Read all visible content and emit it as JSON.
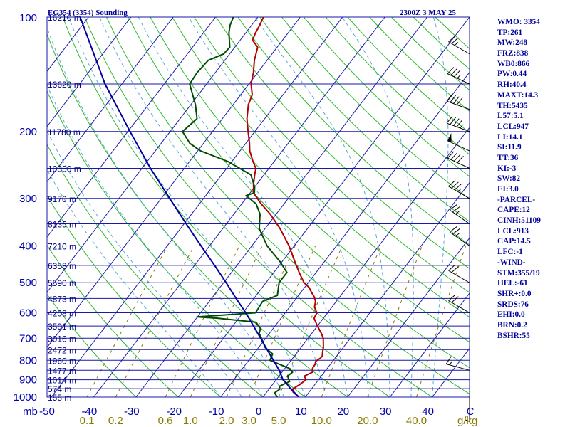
{
  "header": {
    "station": "EG354 (3354) Sounding",
    "time": "2300Z  3 MAY 25"
  },
  "stats": [
    "WMO: 3354",
    "TP:261",
    "MW:248",
    "FRZ:838",
    "WB0:866",
    "PW:0.44",
    "RH:40.4",
    "MAXT:14.3",
    "TH:5435",
    "L57:5.1",
    "LCL:947",
    "LI:14.1",
    "SI:11.9",
    "TT:36",
    "KI:-3",
    "SW:82",
    "EI:3.0",
    "-PARCEL-",
    "CAPE:12",
    "CINH:51109",
    "LCL:913",
    "CAP:14.5",
    "LFC:-1",
    "-WIND-",
    "STM:355/19",
    "HEL:-61",
    "SHR+:0.0",
    "SRDS:76",
    "EHI:0.0",
    "BRN:0.2",
    "BSHR:55"
  ],
  "chart_data": {
    "type": "line",
    "subtype": "skew-T log-P sounding",
    "xlim": [
      -50,
      40
    ],
    "ylim": [
      1000,
      100
    ],
    "ylog": true,
    "xunit": "C",
    "mixing_ratio_unit": "g/kg",
    "pressure_unit": "mb",
    "pressure_ticks": [
      {
        "p": 100,
        "label": "100"
      },
      {
        "p": 200,
        "label": "200"
      },
      {
        "p": 300,
        "label": "300"
      },
      {
        "p": 400,
        "label": "400"
      },
      {
        "p": 500,
        "label": "500"
      },
      {
        "p": 600,
        "label": "600"
      },
      {
        "p": 700,
        "label": "700"
      },
      {
        "p": 800,
        "label": "800"
      },
      {
        "p": 900,
        "label": "900"
      },
      {
        "p": 1000,
        "label": "1000"
      }
    ],
    "height_labels": [
      {
        "p": 100,
        "label": "16210 m"
      },
      {
        "p": 150,
        "label": "13620 m"
      },
      {
        "p": 200,
        "label": "11780 m"
      },
      {
        "p": 250,
        "label": "10350 m"
      },
      {
        "p": 300,
        "label": "9170 m"
      },
      {
        "p": 350,
        "label": "8135 m"
      },
      {
        "p": 400,
        "label": "7210 m"
      },
      {
        "p": 450,
        "label": "6358 m"
      },
      {
        "p": 500,
        "label": "5590 m"
      },
      {
        "p": 550,
        "label": "4873 m"
      },
      {
        "p": 600,
        "label": "4208 m"
      },
      {
        "p": 650,
        "label": "3591 m"
      },
      {
        "p": 700,
        "label": "3016 m"
      },
      {
        "p": 750,
        "label": "2472 m"
      },
      {
        "p": 800,
        "label": "1960 m"
      },
      {
        "p": 850,
        "label": "1477 m"
      },
      {
        "p": 900,
        "label": "1014 m"
      },
      {
        "p": 950,
        "label": "574 m"
      },
      {
        "p": 1000,
        "label": "155 m"
      }
    ],
    "temp_ticks": [
      "-50",
      "-40",
      "-30",
      "-20",
      "-10",
      "0",
      "10",
      "20",
      "30",
      "40",
      "C"
    ],
    "mixing_ticks": [
      {
        "w": 0.1,
        "label": "0.1"
      },
      {
        "w": 0.2,
        "label": "0.2"
      },
      {
        "w": 0.6,
        "label": "0.6"
      },
      {
        "w": 1.0,
        "label": "1.0"
      },
      {
        "w": 2.0,
        "label": "2.0"
      },
      {
        "w": 3.0,
        "label": "3.0"
      },
      {
        "w": 5.0,
        "label": "5.0"
      },
      {
        "w": 10.0,
        "label": "10.0"
      },
      {
        "w": 20.0,
        "label": "20.0"
      },
      {
        "w": 40.0,
        "label": "40.0"
      }
    ],
    "mixing_unit_label": "g/kg",
    "colors": {
      "isobar": "#1a1aa8",
      "isotherm": "#1a1aa8",
      "dry_adiabat": "#2db82d",
      "moist_adiabat": "#5aa9d8",
      "mixing_ratio": "#8c7a00",
      "temperature": "#b30000",
      "dewpoint": "#004d00",
      "parcel": "#0000a0",
      "wind": "#000000"
    },
    "series": [
      {
        "key": "temperature",
        "values": [
          {
            "p": 1000,
            "t": 8.5
          },
          {
            "p": 970,
            "t": 6.2
          },
          {
            "p": 950,
            "t": 5.6
          },
          {
            "p": 925,
            "t": 6.5
          },
          {
            "p": 900,
            "t": 7.0
          },
          {
            "p": 880,
            "t": 6.0
          },
          {
            "p": 860,
            "t": 7.2
          },
          {
            "p": 840,
            "t": 6.5
          },
          {
            "p": 820,
            "t": 6.4
          },
          {
            "p": 805,
            "t": 6.0
          },
          {
            "p": 790,
            "t": 6.5
          },
          {
            "p": 780,
            "t": 6.6
          },
          {
            "p": 760,
            "t": 5.9
          },
          {
            "p": 740,
            "t": 5.3
          },
          {
            "p": 700,
            "t": 3.6
          },
          {
            "p": 680,
            "t": 2.3
          },
          {
            "p": 650,
            "t": 0.0
          },
          {
            "p": 620,
            "t": -2.2
          },
          {
            "p": 600,
            "t": -2.5
          },
          {
            "p": 580,
            "t": -4.1
          },
          {
            "p": 560,
            "t": -4.9
          },
          {
            "p": 545,
            "t": -6.0
          },
          {
            "p": 530,
            "t": -7.5
          },
          {
            "p": 515,
            "t": -8.9
          },
          {
            "p": 500,
            "t": -11.0
          },
          {
            "p": 470,
            "t": -14.0
          },
          {
            "p": 440,
            "t": -17.0
          },
          {
            "p": 400,
            "t": -21.2
          },
          {
            "p": 360,
            "t": -26.5
          },
          {
            "p": 330,
            "t": -31.4
          },
          {
            "p": 310,
            "t": -35.4
          },
          {
            "p": 300,
            "t": -37.3
          },
          {
            "p": 290,
            "t": -39.2
          },
          {
            "p": 275,
            "t": -40.8
          },
          {
            "p": 260,
            "t": -42.2
          },
          {
            "p": 250,
            "t": -43.1
          },
          {
            "p": 240,
            "t": -45.0
          },
          {
            "p": 225,
            "t": -47.7
          },
          {
            "p": 215,
            "t": -49.1
          },
          {
            "p": 200,
            "t": -51.6
          },
          {
            "p": 185,
            "t": -54.2
          },
          {
            "p": 170,
            "t": -56.4
          },
          {
            "p": 160,
            "t": -57.3
          },
          {
            "p": 150,
            "t": -59.5
          },
          {
            "p": 140,
            "t": -61.0
          },
          {
            "p": 130,
            "t": -63.0
          },
          {
            "p": 120,
            "t": -64.6
          },
          {
            "p": 115,
            "t": -67.1
          },
          {
            "p": 110,
            "t": -67.7
          },
          {
            "p": 105,
            "t": -68.1
          },
          {
            "p": 100,
            "t": -68.7
          }
        ]
      },
      {
        "key": "dewpoint",
        "values": [
          {
            "p": 1000,
            "t": 3.4
          },
          {
            "p": 975,
            "t": 2.0
          },
          {
            "p": 955,
            "t": 2.5
          },
          {
            "p": 935,
            "t": 2.0
          },
          {
            "p": 910,
            "t": 3.5
          },
          {
            "p": 880,
            "t": 2.0
          },
          {
            "p": 860,
            "t": 2.5
          },
          {
            "p": 840,
            "t": 1.0
          },
          {
            "p": 800,
            "t": -5.0
          },
          {
            "p": 770,
            "t": -5.5
          },
          {
            "p": 740,
            "t": -8.5
          },
          {
            "p": 700,
            "t": -11.0
          },
          {
            "p": 680,
            "t": -12.4
          },
          {
            "p": 660,
            "t": -13.0
          },
          {
            "p": 635,
            "t": -15.2
          },
          {
            "p": 620,
            "t": -25.0
          },
          {
            "p": 615,
            "t": -30.1
          },
          {
            "p": 600,
            "t": -17.0
          },
          {
            "p": 560,
            "t": -17.4
          },
          {
            "p": 540,
            "t": -15.0
          },
          {
            "p": 500,
            "t": -16.9
          },
          {
            "p": 470,
            "t": -16.9
          },
          {
            "p": 440,
            "t": -20.5
          },
          {
            "p": 400,
            "t": -26.4
          },
          {
            "p": 360,
            "t": -31.4
          },
          {
            "p": 330,
            "t": -33.8
          },
          {
            "p": 310,
            "t": -36.6
          },
          {
            "p": 295,
            "t": -40.5
          },
          {
            "p": 290,
            "t": -39.0
          },
          {
            "p": 280,
            "t": -40.0
          },
          {
            "p": 260,
            "t": -43.1
          },
          {
            "p": 240,
            "t": -50.9
          },
          {
            "p": 225,
            "t": -59.3
          },
          {
            "p": 215,
            "t": -63.2
          },
          {
            "p": 200,
            "t": -67.1
          },
          {
            "p": 185,
            "t": -66.0
          },
          {
            "p": 170,
            "t": -68.9
          },
          {
            "p": 150,
            "t": -74.0
          },
          {
            "p": 140,
            "t": -74.3
          },
          {
            "p": 130,
            "t": -73.9
          },
          {
            "p": 125,
            "t": -71.4
          },
          {
            "p": 120,
            "t": -71.2
          },
          {
            "p": 110,
            "t": -74.0
          },
          {
            "p": 105,
            "t": -75.1
          },
          {
            "p": 100,
            "t": -75.8
          }
        ]
      },
      {
        "key": "parcel",
        "values": [
          {
            "p": 1000,
            "t": 8.5
          },
          {
            "p": 950,
            "t": 5.0
          },
          {
            "p": 913,
            "t": 2.6
          },
          {
            "p": 900,
            "t": 1.6
          },
          {
            "p": 850,
            "t": -1.0
          },
          {
            "p": 800,
            "t": -4.2
          },
          {
            "p": 750,
            "t": -7.6
          },
          {
            "p": 700,
            "t": -11.2
          },
          {
            "p": 650,
            "t": -15.1
          },
          {
            "p": 600,
            "t": -19.3
          },
          {
            "p": 550,
            "t": -24.2
          },
          {
            "p": 500,
            "t": -29.4
          },
          {
            "p": 450,
            "t": -35.3
          },
          {
            "p": 400,
            "t": -42.0
          },
          {
            "p": 350,
            "t": -49.5
          },
          {
            "p": 300,
            "t": -58.0
          },
          {
            "p": 250,
            "t": -68.0
          },
          {
            "p": 200,
            "t": -79.5
          },
          {
            "p": 150,
            "t": -94.0
          },
          {
            "p": 100,
            "t": -112.0
          }
        ]
      }
    ],
    "wind_barbs": [
      {
        "p": 1000,
        "dir": 180,
        "spd": 5
      },
      {
        "p": 850,
        "dir": 285,
        "spd": 15
      },
      {
        "p": 600,
        "dir": 300,
        "spd": 20
      },
      {
        "p": 500,
        "dir": 300,
        "spd": 20
      },
      {
        "p": 400,
        "dir": 305,
        "spd": 25
      },
      {
        "p": 350,
        "dir": 305,
        "spd": 25
      },
      {
        "p": 300,
        "dir": 300,
        "spd": 35
      },
      {
        "p": 250,
        "dir": 295,
        "spd": 40
      },
      {
        "p": 225,
        "dir": 295,
        "spd": 50
      },
      {
        "p": 200,
        "dir": 290,
        "spd": 45
      },
      {
        "p": 175,
        "dir": 290,
        "spd": 40
      },
      {
        "p": 150,
        "dir": 295,
        "spd": 35
      },
      {
        "p": 125,
        "dir": 300,
        "spd": 25
      }
    ]
  }
}
